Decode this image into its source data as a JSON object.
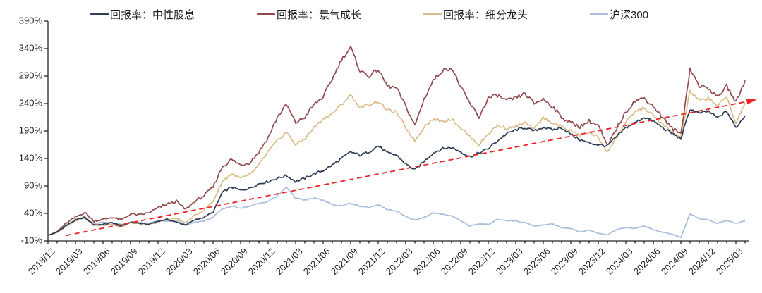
{
  "chart_data": {
    "type": "line",
    "title": "",
    "legend_position": "top",
    "grid": false,
    "background_color": "#ffffff",
    "axis_color": "#262626",
    "tick_label_color": "#1f1f1f",
    "y_axis": {
      "unit": "%",
      "min": -10,
      "max": 390,
      "ticks": [
        390,
        340,
        290,
        240,
        190,
        140,
        90,
        40,
        -10
      ],
      "tick_labels": [
        "390%",
        "340%",
        "290%",
        "240%",
        "190%",
        "140%",
        "90%",
        "40%",
        "-10%"
      ]
    },
    "x_axis": {
      "label_rotation": -45,
      "minor_tick_interval": "monthly",
      "tick_labels": [
        "2018/12",
        "2019/03",
        "2019/06",
        "2019/09",
        "2019/12",
        "2020/03",
        "2020/06",
        "2020/09",
        "2020/12",
        "2021/03",
        "2021/06",
        "2021/09",
        "2021/12",
        "2022/03",
        "2022/06",
        "2022/09",
        "2022/12",
        "2023/03",
        "2023/06",
        "2023/09",
        "2023/12",
        "2024/03",
        "2024/06",
        "2024/09",
        "2024/12",
        "2025/03"
      ]
    },
    "x_monthly": [
      "2018/12",
      "2019/01",
      "2019/02",
      "2019/03",
      "2019/04",
      "2019/05",
      "2019/06",
      "2019/07",
      "2019/08",
      "2019/09",
      "2019/10",
      "2019/11",
      "2019/12",
      "2020/01",
      "2020/02",
      "2020/03",
      "2020/04",
      "2020/05",
      "2020/06",
      "2020/07",
      "2020/08",
      "2020/09",
      "2020/10",
      "2020/11",
      "2020/12",
      "2021/01",
      "2021/02",
      "2021/03",
      "2021/04",
      "2021/05",
      "2021/06",
      "2021/07",
      "2021/08",
      "2021/09",
      "2021/10",
      "2021/11",
      "2021/12",
      "2022/01",
      "2022/02",
      "2022/03",
      "2022/04",
      "2022/05",
      "2022/06",
      "2022/07",
      "2022/08",
      "2022/09",
      "2022/10",
      "2022/11",
      "2022/12",
      "2023/01",
      "2023/02",
      "2023/03",
      "2023/04",
      "2023/05",
      "2023/06",
      "2023/07",
      "2023/08",
      "2023/09",
      "2023/10",
      "2023/11",
      "2023/12",
      "2024/01",
      "2024/02",
      "2024/03",
      "2024/04",
      "2024/05",
      "2024/06",
      "2024/07",
      "2024/08",
      "2024/09",
      "2024/10",
      "2024/11",
      "2024/12",
      "2025/01",
      "2025/02",
      "2025/03",
      "2025/04"
    ],
    "series": [
      {
        "name": "回报率：中性股息",
        "color": "#2e3d56",
        "jitter": 4.5,
        "values": [
          0,
          6,
          18,
          28,
          33,
          19,
          20,
          23,
          17,
          24,
          22,
          20,
          26,
          29,
          24,
          19,
          28,
          33,
          42,
          78,
          88,
          82,
          86,
          94,
          98,
          104,
          109,
          98,
          104,
          112,
          118,
          128,
          140,
          152,
          146,
          152,
          163,
          150,
          146,
          130,
          119,
          135,
          150,
          158,
          160,
          152,
          143,
          150,
          158,
          172,
          185,
          192,
          196,
          190,
          197,
          192,
          196,
          184,
          174,
          168,
          165,
          163,
          180,
          196,
          205,
          215,
          208,
          196,
          186,
          176,
          230,
          222,
          226,
          214,
          226,
          196,
          218
        ]
      },
      {
        "name": "回报率：景气成长",
        "color": "#934a4c",
        "jitter": 7,
        "values": [
          0,
          7,
          22,
          33,
          42,
          26,
          29,
          33,
          28,
          39,
          37,
          41,
          50,
          57,
          62,
          47,
          62,
          72,
          88,
          125,
          138,
          128,
          133,
          152,
          178,
          215,
          238,
          205,
          215,
          238,
          252,
          285,
          320,
          342,
          300,
          290,
          302,
          272,
          268,
          235,
          200,
          248,
          282,
          300,
          305,
          270,
          240,
          215,
          250,
          255,
          245,
          250,
          258,
          240,
          248,
          235,
          215,
          205,
          198,
          208,
          200,
          162,
          195,
          225,
          245,
          250,
          235,
          215,
          195,
          185,
          303,
          272,
          268,
          252,
          272,
          242,
          282
        ]
      },
      {
        "name": "回报率：细分龙头",
        "color": "#dcbd8a",
        "jitter": 5.5,
        "values": [
          0,
          5,
          17,
          27,
          34,
          19,
          18,
          21,
          15,
          23,
          21,
          19,
          24,
          29,
          31,
          23,
          36,
          46,
          62,
          98,
          112,
          104,
          110,
          128,
          152,
          172,
          188,
          165,
          176,
          196,
          212,
          222,
          238,
          256,
          232,
          238,
          244,
          228,
          224,
          196,
          172,
          198,
          212,
          208,
          212,
          196,
          180,
          165,
          185,
          200,
          195,
          198,
          205,
          193,
          214,
          205,
          198,
          190,
          182,
          188,
          178,
          152,
          178,
          205,
          225,
          232,
          218,
          202,
          188,
          178,
          262,
          245,
          250,
          236,
          252,
          204,
          242
        ]
      },
      {
        "name": "沪深300",
        "color": "#a9bddd",
        "jitter": 3,
        "values": [
          0,
          6,
          20,
          28,
          31,
          21,
          24,
          23,
          20,
          24,
          23,
          22,
          27,
          26,
          28,
          19,
          24,
          26,
          33,
          48,
          53,
          50,
          53,
          58,
          62,
          72,
          88,
          68,
          64,
          68,
          64,
          56,
          54,
          58,
          53,
          51,
          56,
          47,
          44,
          34,
          28,
          33,
          41,
          38,
          36,
          27,
          17,
          21,
          20,
          29,
          27,
          26,
          23,
          17,
          19,
          21,
          14,
          13,
          6,
          10,
          4,
          1,
          11,
          14,
          13,
          17,
          10,
          6,
          2,
          -4,
          40,
          30,
          28,
          22,
          27,
          22,
          26
        ]
      }
    ],
    "trendline": {
      "style": "dashed",
      "color": "#ee2222",
      "arrow": true,
      "start": {
        "x": "2019/02",
        "value": 0
      },
      "end": {
        "x": "2025/04",
        "value": 245
      }
    }
  }
}
